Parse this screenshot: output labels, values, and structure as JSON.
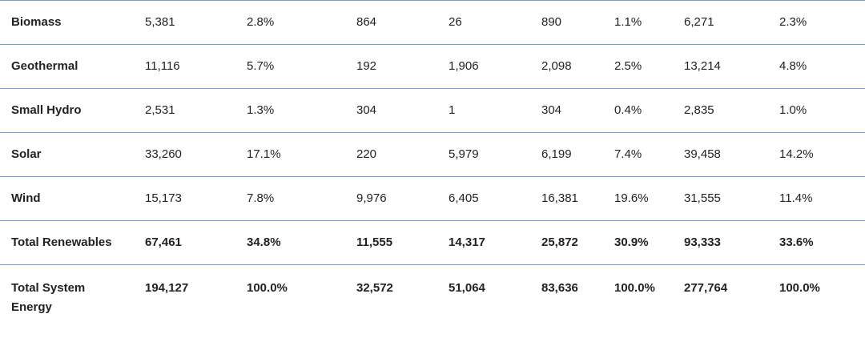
{
  "table": {
    "rows": [
      {
        "label": "Biomass",
        "cells": [
          "5,381",
          "2.8%",
          "864",
          "26",
          "890",
          "1.1%",
          "6,271",
          "2.3%"
        ],
        "bold": false
      },
      {
        "label": "Geothermal",
        "cells": [
          "11,116",
          "5.7%",
          "192",
          "1,906",
          "2,098",
          "2.5%",
          "13,214",
          "4.8%"
        ],
        "bold": false
      },
      {
        "label": "Small Hydro",
        "cells": [
          "2,531",
          "1.3%",
          "304",
          "1",
          "304",
          "0.4%",
          "2,835",
          "1.0%"
        ],
        "bold": false
      },
      {
        "label": "Solar",
        "cells": [
          "33,260",
          "17.1%",
          "220",
          "5,979",
          "6,199",
          "7.4%",
          "39,458",
          "14.2%"
        ],
        "bold": false
      },
      {
        "label": "Wind",
        "cells": [
          "15,173",
          "7.8%",
          "9,976",
          "6,405",
          "16,381",
          "19.6%",
          "31,555",
          "11.4%"
        ],
        "bold": false
      },
      {
        "label": "Total Renewables",
        "cells": [
          "67,461",
          "34.8%",
          "11,555",
          "14,317",
          "25,872",
          "30.9%",
          "93,333",
          "33.6%"
        ],
        "bold": true
      },
      {
        "label": "Total System Energy",
        "cells": [
          "194,127",
          "100.0%",
          "32,572",
          "51,064",
          "83,636",
          "100.0%",
          "277,764",
          "100.0%"
        ],
        "bold": true
      }
    ]
  },
  "colors": {
    "row_border": "#7ba4cf",
    "text": "#222222",
    "background": "#ffffff"
  }
}
